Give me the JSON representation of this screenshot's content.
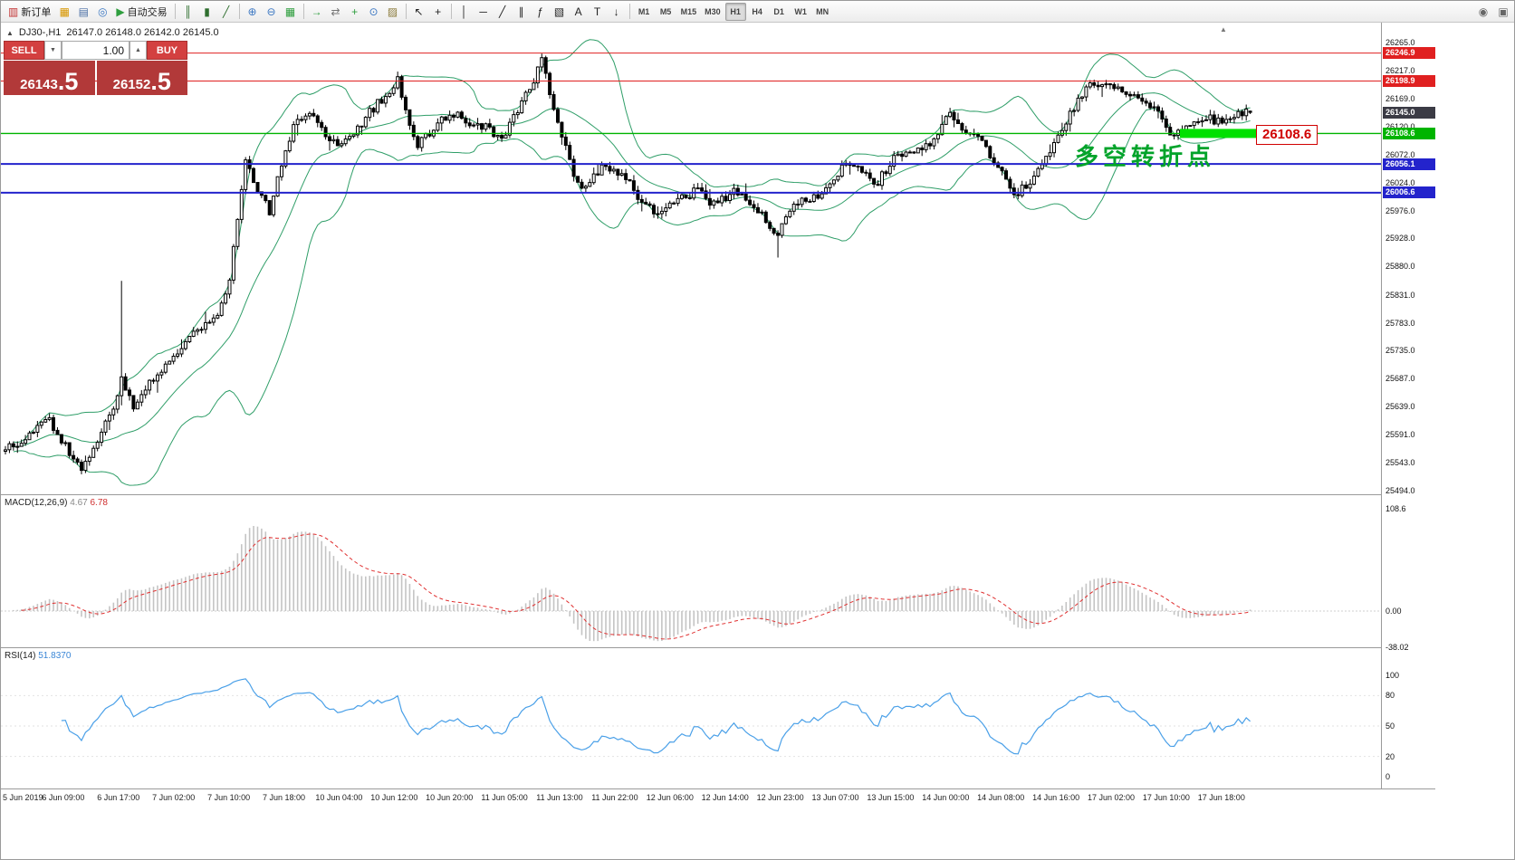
{
  "toolbar": {
    "buttons": [
      {
        "name": "new-order",
        "glyph": "▥",
        "color": "#c03030",
        "label": "新订单"
      },
      {
        "name": "chart-windows",
        "glyph": "▦",
        "color": "#d79600"
      },
      {
        "name": "terminal",
        "glyph": "▤",
        "color": "#4a6fa5"
      },
      {
        "name": "navigator",
        "glyph": "◎",
        "color": "#3b77c2"
      },
      {
        "name": "auto-trading",
        "glyph": "▶",
        "color": "#2e9e3e",
        "label": "自动交易"
      },
      {
        "sep": true
      },
      {
        "name": "bar-chart-type",
        "glyph": "║",
        "color": "#2e6e2e"
      },
      {
        "name": "candlestick-type",
        "glyph": "▮",
        "color": "#2e6e2e"
      },
      {
        "name": "line-chart-type",
        "glyph": "╱",
        "color": "#2e6e2e"
      },
      {
        "sep": true
      },
      {
        "name": "zoom-in",
        "glyph": "⊕",
        "color": "#3b77c2"
      },
      {
        "name": "zoom-out",
        "glyph": "⊖",
        "color": "#3b77c2"
      },
      {
        "name": "tile-grid",
        "glyph": "▦",
        "color": "#2e9e3e"
      },
      {
        "sep": true
      },
      {
        "name": "auto-scroll",
        "glyph": "→",
        "color": "#2e9e3e"
      },
      {
        "name": "chart-shift",
        "glyph": "⇄",
        "color": "#777777"
      },
      {
        "name": "indicators-add",
        "glyph": "+",
        "color": "#2e9e3e"
      },
      {
        "name": "periods",
        "glyph": "⊙",
        "color": "#3b77c2"
      },
      {
        "name": "templates",
        "glyph": "▨",
        "color": "#8a7a3a"
      },
      {
        "sep": true
      },
      {
        "name": "cursor",
        "glyph": "↖",
        "color": "#222222"
      },
      {
        "name": "crosshair",
        "glyph": "+",
        "color": "#222222"
      },
      {
        "sep": true
      },
      {
        "name": "vertical-line",
        "glyph": "│",
        "color": "#222222"
      },
      {
        "name": "horizontal-line",
        "glyph": "─",
        "color": "#222222"
      },
      {
        "name": "trendline",
        "glyph": "╱",
        "color": "#222222"
      },
      {
        "name": "channel",
        "glyph": "∥",
        "color": "#222222"
      },
      {
        "name": "fibonacci",
        "glyph": "ƒ",
        "color": "#222222"
      },
      {
        "name": "shapes",
        "glyph": "▧",
        "color": "#222222"
      },
      {
        "name": "text",
        "glyph": "A",
        "color": "#222222"
      },
      {
        "name": "text-label",
        "glyph": "T",
        "color": "#222222"
      },
      {
        "name": "arrows-tool",
        "glyph": "↓",
        "color": "#222222"
      }
    ],
    "timeframes": [
      "M1",
      "M5",
      "M15",
      "M30",
      "H1",
      "H4",
      "D1",
      "W1",
      "MN"
    ],
    "active_timeframe": "H1",
    "right_buttons": [
      {
        "name": "search",
        "glyph": "◉",
        "color": "#666666"
      },
      {
        "name": "community",
        "glyph": "▣",
        "color": "#666666"
      }
    ]
  },
  "chart_header": {
    "collapse_icon": "▲",
    "symbol": "DJ30-,H1",
    "ohlc": "26147.0 26148.0 26142.0 26145.0"
  },
  "order_panel": {
    "sell_label": "SELL",
    "buy_label": "BUY",
    "volume": "1.00",
    "down_icon": "▼",
    "up_icon": "▲",
    "sell_price_main": "26143",
    "sell_price_frac": ".5",
    "buy_price_main": "26152",
    "buy_price_frac": ".5"
  },
  "annotations": {
    "turning_point_label": "多空转折点",
    "price_tag": "26108.6",
    "scroll_marker": "▲"
  },
  "chart_data": {
    "type": "candlestick",
    "symbol": "DJ30-",
    "timeframe": "H1",
    "ohlc": {
      "open": 26147.0,
      "high": 26148.0,
      "low": 26142.0,
      "close": 26145.0
    },
    "candle_count": 312,
    "y_axis": {
      "min": 25494.0,
      "max": 26265.0,
      "ticks": [
        26265.0,
        26217.0,
        26169.0,
        26120.0,
        26072.0,
        26024.0,
        25976.0,
        25928.0,
        25880.0,
        25831.0,
        25783.0,
        25735.0,
        25687.0,
        25639.0,
        25591.0,
        25543.0,
        25494.0
      ]
    },
    "x_axis_labels": [
      "5 Jun 2019",
      "6 Jun 09:00",
      "6 Jun 17:00",
      "7 Jun 02:00",
      "7 Jun 10:00",
      "7 Jun 18:00",
      "10 Jun 04:00",
      "10 Jun 12:00",
      "10 Jun 20:00",
      "11 Jun 05:00",
      "11 Jun 13:00",
      "11 Jun 22:00",
      "12 Jun 06:00",
      "12 Jun 14:00",
      "12 Jun 23:00",
      "13 Jun 07:00",
      "13 Jun 15:00",
      "14 Jun 00:00",
      "14 Jun 08:00",
      "14 Jun 16:00",
      "17 Jun 02:00",
      "17 Jun 10:00",
      "17 Jun 18:00"
    ],
    "price_levels": [
      {
        "price": 26246.9,
        "color": "#e02020",
        "width": 1,
        "type": "resistance-upper"
      },
      {
        "price": 26198.9,
        "color": "#e02020",
        "width": 1,
        "type": "resistance-lower"
      },
      {
        "price": 26145.0,
        "color": "#3b3b45",
        "width": 0,
        "type": "current-price"
      },
      {
        "price": 26108.6,
        "color": "#00b400",
        "width": 1.4,
        "type": "pivot"
      },
      {
        "price": 26056.1,
        "color": "#2323cc",
        "width": 2,
        "type": "support-upper"
      },
      {
        "price": 26006.6,
        "color": "#2323cc",
        "width": 2,
        "type": "support-lower"
      }
    ],
    "highlight_segment": {
      "price": 26108.6,
      "color": "#00e000"
    },
    "price_path_anchors": [
      [
        0,
        25565
      ],
      [
        6,
        25590
      ],
      [
        11,
        25615
      ],
      [
        16,
        25560
      ],
      [
        19,
        25525
      ],
      [
        24,
        25600
      ],
      [
        27,
        25640
      ],
      [
        29,
        25690
      ],
      [
        32,
        25640
      ],
      [
        36,
        25680
      ],
      [
        42,
        25720
      ],
      [
        48,
        25770
      ],
      [
        53,
        25800
      ],
      [
        56,
        25860
      ],
      [
        58,
        25960
      ],
      [
        60,
        26060
      ],
      [
        63,
        26010
      ],
      [
        66,
        25975
      ],
      [
        69,
        26060
      ],
      [
        72,
        26120
      ],
      [
        76,
        26140
      ],
      [
        80,
        26110
      ],
      [
        84,
        26085
      ],
      [
        88,
        26120
      ],
      [
        93,
        26160
      ],
      [
        98,
        26200
      ],
      [
        101,
        26130
      ],
      [
        103,
        26085
      ],
      [
        107,
        26120
      ],
      [
        111,
        26145
      ],
      [
        115,
        26130
      ],
      [
        120,
        26120
      ],
      [
        124,
        26100
      ],
      [
        128,
        26150
      ],
      [
        132,
        26200
      ],
      [
        134,
        26235
      ],
      [
        136,
        26180
      ],
      [
        139,
        26110
      ],
      [
        142,
        26035
      ],
      [
        145,
        26010
      ],
      [
        149,
        26055
      ],
      [
        153,
        26040
      ],
      [
        156,
        26020
      ],
      [
        160,
        25985
      ],
      [
        164,
        25970
      ],
      [
        168,
        25995
      ],
      [
        173,
        26010
      ],
      [
        177,
        25985
      ],
      [
        182,
        26010
      ],
      [
        186,
        25985
      ],
      [
        190,
        25960
      ],
      [
        193,
        25935
      ],
      [
        196,
        25975
      ],
      [
        200,
        25995
      ],
      [
        205,
        26010
      ],
      [
        210,
        26060
      ],
      [
        214,
        26040
      ],
      [
        218,
        26025
      ],
      [
        222,
        26065
      ],
      [
        227,
        26080
      ],
      [
        231,
        26095
      ],
      [
        236,
        26140
      ],
      [
        240,
        26115
      ],
      [
        245,
        26085
      ],
      [
        249,
        26040
      ],
      [
        252,
        26000
      ],
      [
        256,
        26025
      ],
      [
        261,
        26075
      ],
      [
        265,
        26130
      ],
      [
        270,
        26185
      ],
      [
        274,
        26200
      ],
      [
        278,
        26185
      ],
      [
        283,
        26170
      ],
      [
        287,
        26155
      ],
      [
        291,
        26110
      ],
      [
        296,
        26125
      ],
      [
        300,
        26140
      ],
      [
        304,
        26125
      ],
      [
        307,
        26140
      ],
      [
        311,
        26145
      ]
    ],
    "wick_overrides": [
      {
        "i": 29,
        "high": 25855
      },
      {
        "i": 98,
        "high": 26215
      },
      {
        "i": 134,
        "high": 26246
      },
      {
        "i": 193,
        "low": 25895
      }
    ],
    "bollinger": {
      "period": 20,
      "deviation": 2,
      "color": "#2f9e68"
    },
    "macd": {
      "label": "MACD(12,26,9)",
      "value_main": "4.67",
      "value_signal": "6.78",
      "axis_ticks": [
        "108.6",
        "0.00",
        "-38.02"
      ],
      "histogram_color": "#c4c4c4",
      "signal_color": "#e03030"
    },
    "rsi": {
      "label": "RSI(14)",
      "value": "51.8370",
      "axis_ticks": [
        "100",
        "80",
        "50",
        "20",
        "0"
      ],
      "levels": [
        80,
        50,
        20
      ],
      "color": "#4aa0e8"
    }
  }
}
